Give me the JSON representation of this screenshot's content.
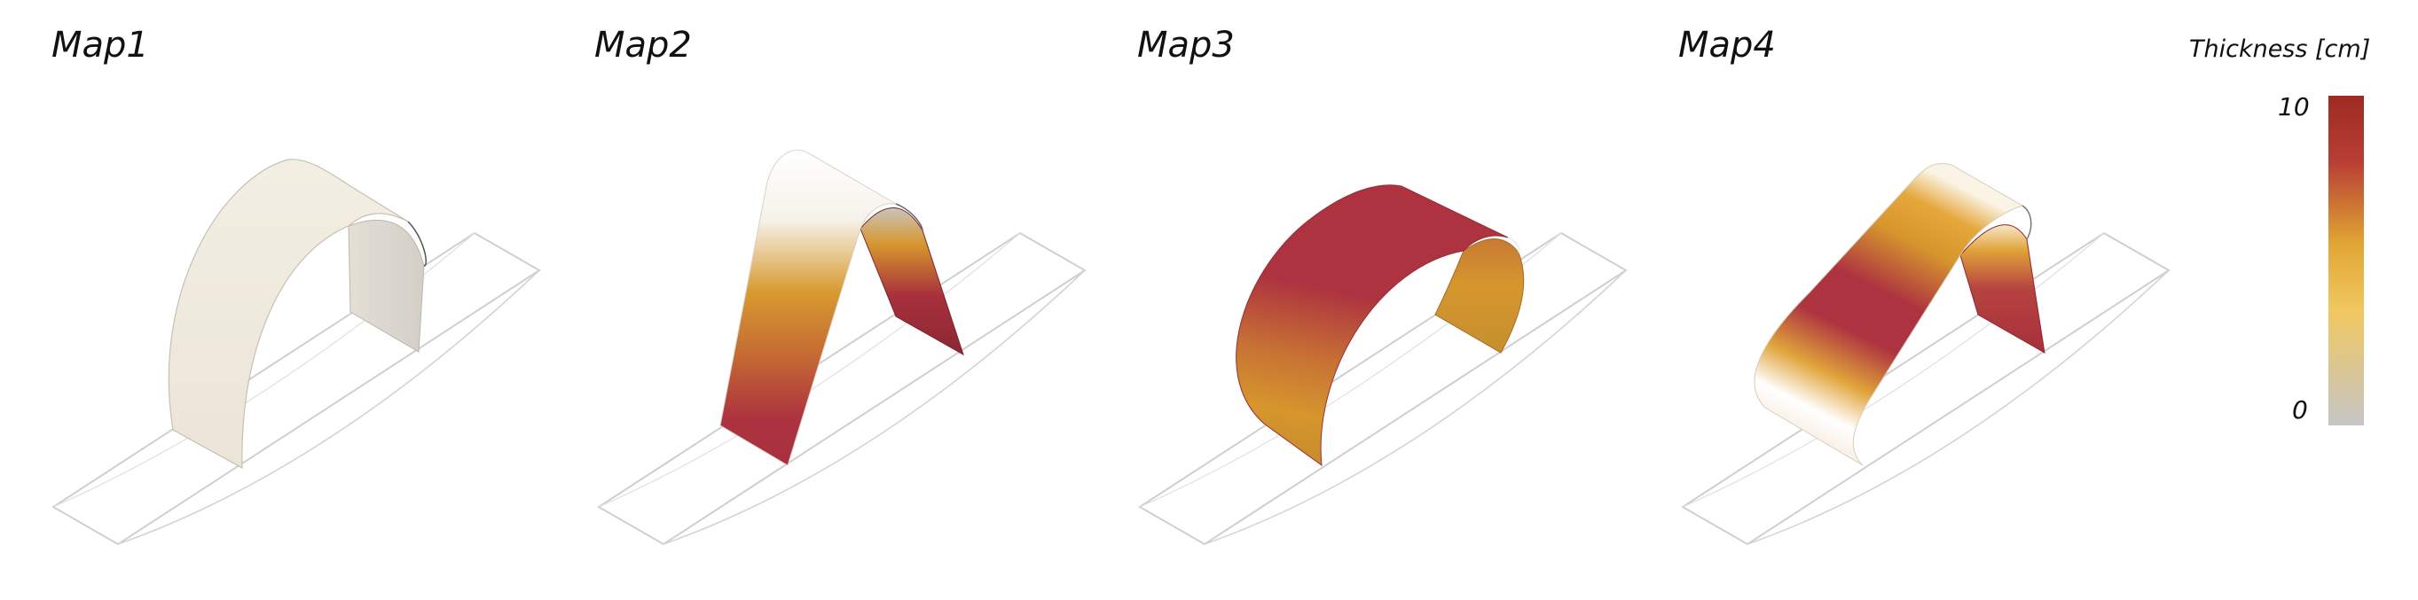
{
  "maps": [
    {
      "title": "Map1",
      "scheme": "uniform"
    },
    {
      "title": "Map2",
      "scheme": "light-top"
    },
    {
      "title": "Map3",
      "scheme": "dark-top"
    },
    {
      "title": "Map4",
      "scheme": "banded"
    }
  ],
  "legend": {
    "title": "Thickness [cm]",
    "min_label": "0",
    "max_label": "10",
    "colors": [
      "#c6c6c6",
      "#f0c760",
      "#e1a634",
      "#b83e35",
      "#9e2b22"
    ]
  },
  "colors": {
    "light": "#f2ede3",
    "yellow": "#e9b553",
    "orange": "#d6962d",
    "red": "#ad3340",
    "dark_red": "#8a2833",
    "outline": "#cfcfcf"
  }
}
